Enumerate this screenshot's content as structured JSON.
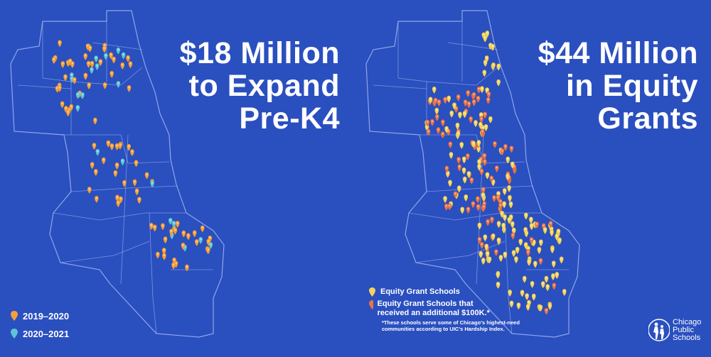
{
  "left": {
    "headline": [
      "$18 Million",
      "to Expand",
      "Pre-K4"
    ],
    "legend": [
      {
        "label": "2019–2020",
        "color": "#f5a03a"
      },
      {
        "label": "2020–2021",
        "color": "#5ec3d6"
      }
    ]
  },
  "right": {
    "headline": [
      "$44 Million",
      "in Equity",
      "Grants"
    ],
    "legend": [
      {
        "label": "Equity Grant Schools",
        "color": "#f5d45a"
      },
      {
        "label": "Equity Grant Schools that received an additional $100K.*",
        "color": "#e8734a"
      }
    ],
    "footnote": "*These schools serve some of Chicago's highest-need communities according to UIC's Hardship Index."
  },
  "logo": {
    "lines": [
      "Chicago",
      "Public",
      "Schools"
    ]
  },
  "colors": {
    "background": "#2a4fbf",
    "pin_orange": "#f5a03a",
    "pin_teal": "#5ec3d6",
    "pin_yellow": "#f5d45a",
    "pin_red": "#e8734a",
    "border": "#8ea6e8"
  }
}
